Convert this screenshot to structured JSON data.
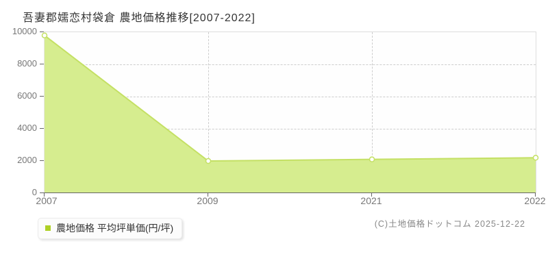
{
  "title": "吾妻郡嬬恋村袋倉 農地価格推移[2007-2022]",
  "legend": {
    "label": "農地価格 平均坪単価(円/坪)"
  },
  "copyright": "(C)土地価格ドットコム 2025-12-22",
  "chart_data": {
    "type": "area",
    "categories": [
      "2007",
      "2009",
      "2021",
      "2022"
    ],
    "series": [
      {
        "name": "農地価格 平均坪単価(円/坪)",
        "values": [
          9800,
          2000,
          2100,
          2200
        ]
      }
    ],
    "title": "吾妻郡嬬恋村袋倉 農地価格推移[2007-2022]",
    "xlabel": "",
    "ylabel": "",
    "ylim": [
      0,
      10000
    ],
    "y_ticks": [
      0,
      2000,
      4000,
      6000,
      8000,
      10000
    ],
    "x_tick_labels": [
      "2007",
      "2009",
      "2021",
      "2022"
    ],
    "grid": "dashed",
    "legend_position": "bottom-left",
    "marker": "open-circle",
    "colors": {
      "line": "#c4e064",
      "fill": "#d6ed8f",
      "marker_fill": "#ffffff",
      "legend_swatch": "#aed026",
      "axis": "#666666",
      "grid": "#cccccc",
      "tick_text": "#777777",
      "title_text": "#333333"
    }
  }
}
